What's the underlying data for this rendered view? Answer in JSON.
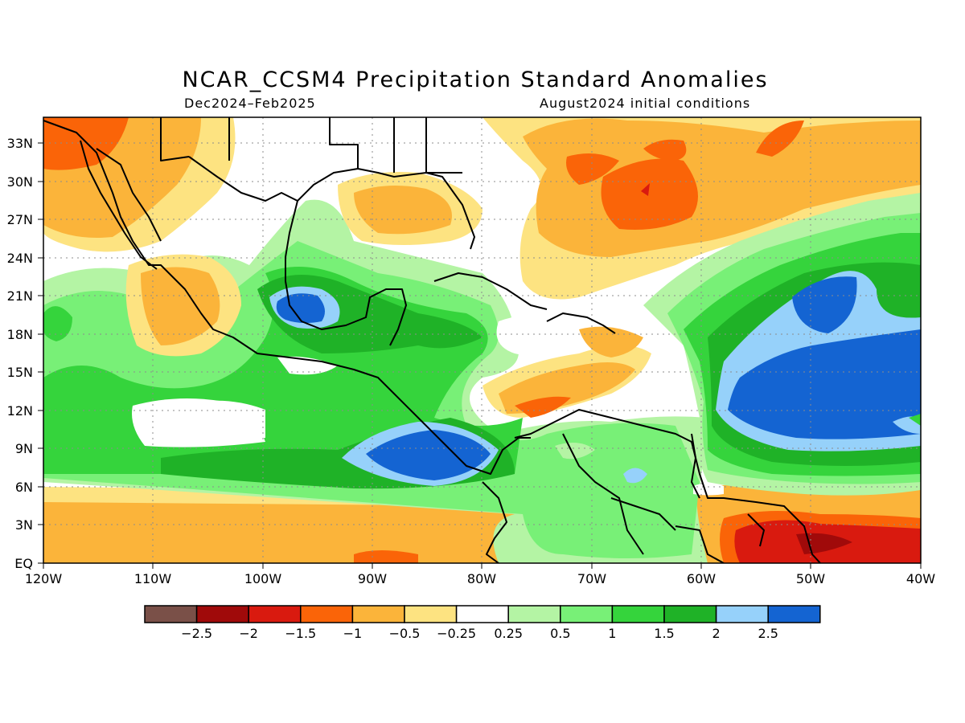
{
  "title": "NCAR_CCSM4 Precipitation Standard Anomalies",
  "subtitle_left": "Dec2024–Feb2025",
  "subtitle_right": "August2024 initial conditions",
  "lat_labels": [
    "33N",
    "30N",
    "27N",
    "24N",
    "21N",
    "18N",
    "15N",
    "12N",
    "9N",
    "6N",
    "3N",
    "EQ"
  ],
  "lon_labels": [
    "120W",
    "110W",
    "100W",
    "90W",
    "80W",
    "70W",
    "60W",
    "50W",
    "40W"
  ],
  "colorbar": {
    "colors": [
      "#7a5048",
      "#a00a0a",
      "#d91a0f",
      "#fa6408",
      "#fbb43a",
      "#fde381",
      "#ffffff",
      "#b4f4a4",
      "#78f077",
      "#35d43c",
      "#1fb227",
      "#96d1fa",
      "#1464d2"
    ],
    "labels": [
      "−2.5",
      "−2",
      "−1.5",
      "−1",
      "−0.5",
      "−0.25",
      "0.25",
      "0.5",
      "1",
      "1.5",
      "2",
      "2.5"
    ]
  }
}
